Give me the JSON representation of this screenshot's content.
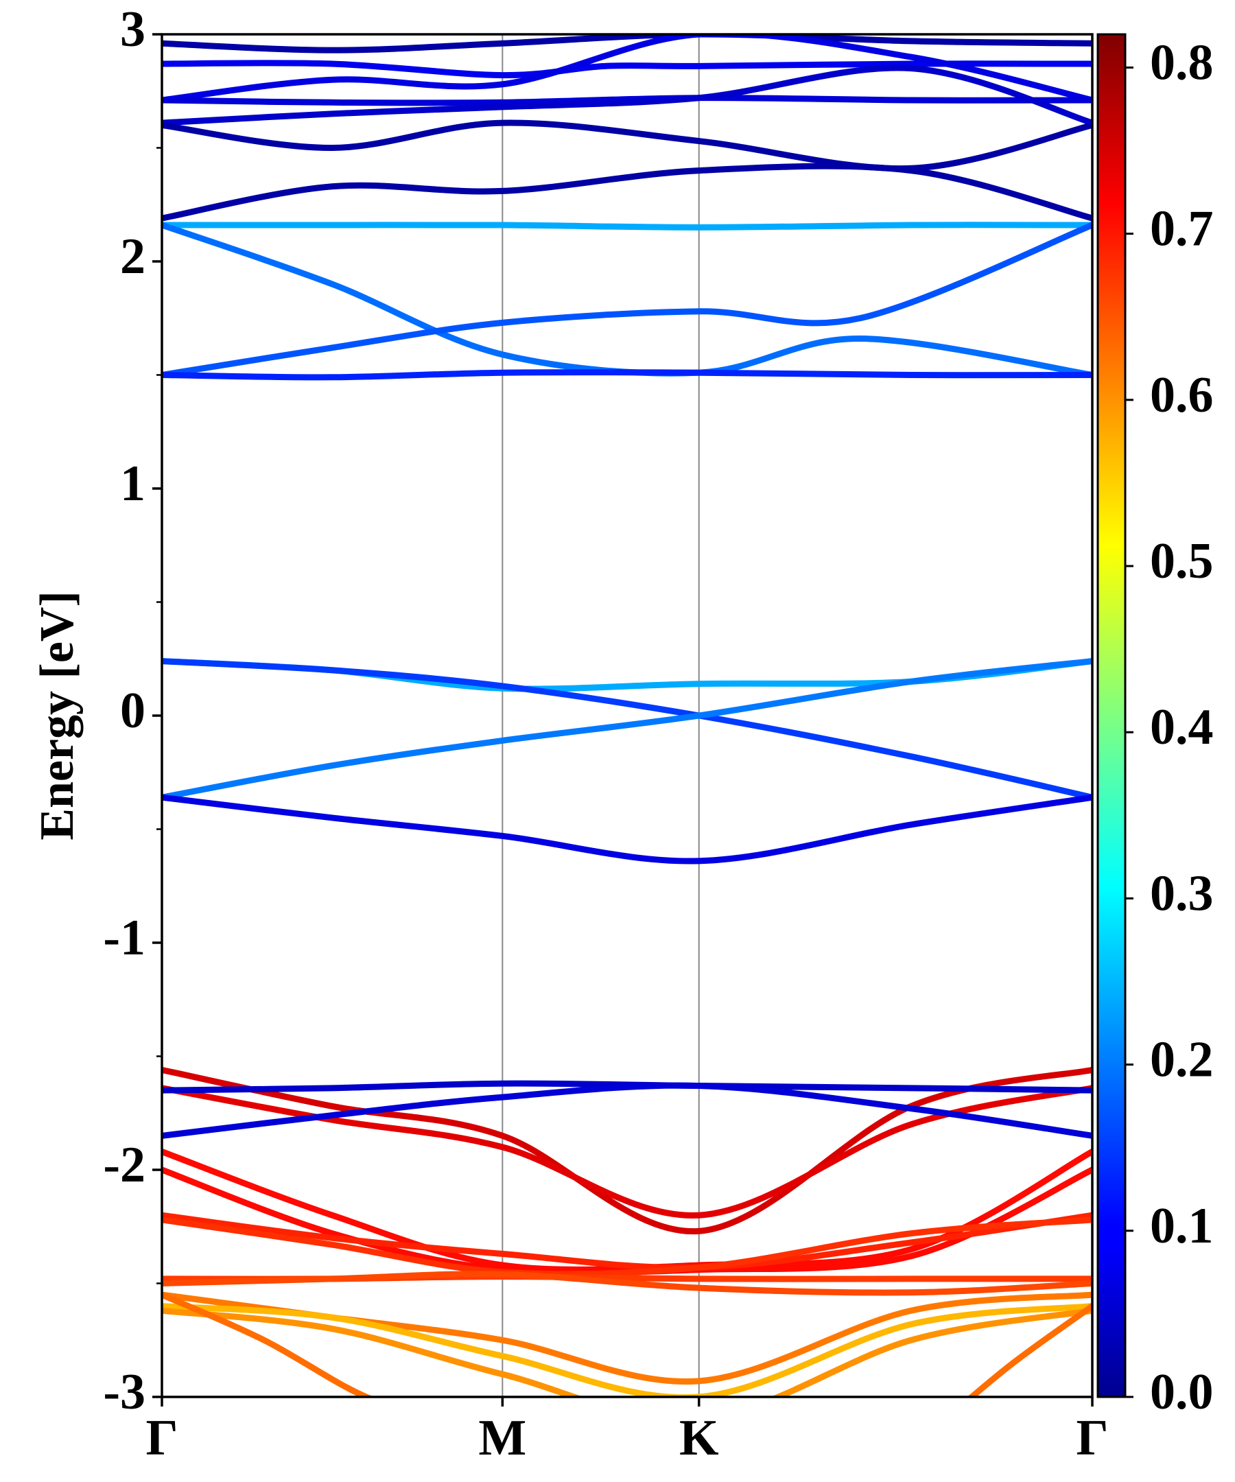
{
  "chart_data": {
    "type": "line",
    "ylabel": "Energy [eV]",
    "ylim": [
      -3,
      3
    ],
    "yticks": [
      -3,
      -2,
      -1,
      0,
      1,
      2,
      3
    ],
    "yminor_ticks": [
      -2.5,
      -1.5,
      -0.5,
      0.5,
      1.5,
      2.5
    ],
    "kpath": [
      {
        "label": "Γ",
        "x": 0
      },
      {
        "label": "M",
        "x": 1.0
      },
      {
        "label": "K",
        "x": 1.577
      },
      {
        "label": "Γ",
        "x": 2.732
      }
    ],
    "colorbar": {
      "min": 0.0,
      "max": 0.82,
      "ticks": [
        "0.0",
        "0.1",
        "0.2",
        "0.3",
        "0.4",
        "0.5",
        "0.6",
        "0.7",
        "0.8"
      ],
      "colormap": "jet"
    },
    "series": [
      {
        "x": [
          0,
          0.5,
          1.0,
          1.577,
          2.2,
          2.732
        ],
        "energy": [
          2.96,
          2.93,
          2.96,
          3.0,
          2.97,
          2.96
        ],
        "weight": 0.03
      },
      {
        "x": [
          0,
          0.5,
          1.0,
          1.3,
          1.577,
          2.2,
          2.732
        ],
        "energy": [
          2.87,
          2.87,
          2.82,
          2.86,
          2.86,
          2.87,
          2.87
        ],
        "weight": 0.09
      },
      {
        "x": [
          0,
          0.5,
          1.0,
          1.577,
          2.2,
          2.732
        ],
        "energy": [
          2.71,
          2.8,
          2.78,
          3.0,
          2.9,
          2.71
        ],
        "weight": 0.08
      },
      {
        "x": [
          0,
          0.5,
          1.0,
          1.577,
          2.2,
          2.732
        ],
        "energy": [
          2.71,
          2.7,
          2.7,
          2.72,
          2.71,
          2.71
        ],
        "weight": 0.07
      },
      {
        "x": [
          0,
          0.5,
          1.0,
          1.577,
          2.2,
          2.732
        ],
        "energy": [
          2.61,
          2.65,
          2.68,
          2.72,
          2.85,
          2.61
        ],
        "weight": 0.06
      },
      {
        "x": [
          0,
          0.5,
          1.0,
          1.577,
          2.2,
          2.732
        ],
        "energy": [
          2.6,
          2.5,
          2.61,
          2.53,
          2.41,
          2.6
        ],
        "weight": 0.03
      },
      {
        "x": [
          0,
          0.5,
          1.0,
          1.577,
          2.2,
          2.732
        ],
        "energy": [
          2.19,
          2.33,
          2.31,
          2.4,
          2.4,
          2.19
        ],
        "weight": 0.03
      },
      {
        "x": [
          0,
          0.5,
          1.0,
          1.577,
          2.2,
          2.732
        ],
        "energy": [
          2.16,
          2.16,
          2.16,
          2.15,
          2.16,
          2.16
        ],
        "weight": 0.24
      },
      {
        "x": [
          0,
          0.5,
          1.0,
          1.577,
          2.05,
          2.732
        ],
        "energy": [
          2.16,
          1.9,
          1.59,
          1.51,
          1.66,
          1.5
        ],
        "weight": 0.19
      },
      {
        "x": [
          0,
          0.5,
          1.0,
          1.577,
          2.05,
          2.732
        ],
        "energy": [
          1.5,
          1.62,
          1.73,
          1.78,
          1.75,
          2.16
        ],
        "weight": 0.17
      },
      {
        "x": [
          0,
          0.5,
          1.0,
          1.577,
          2.2,
          2.732
        ],
        "energy": [
          1.5,
          1.49,
          1.51,
          1.51,
          1.5,
          1.5
        ],
        "weight": 0.13
      },
      {
        "x": [
          0,
          0.5,
          1.0,
          1.577,
          2.2,
          2.732
        ],
        "energy": [
          0.24,
          0.2,
          0.12,
          0.14,
          0.15,
          0.24
        ],
        "weight": 0.24
      },
      {
        "x": [
          0,
          0.5,
          1.0,
          1.577,
          2.2,
          2.732
        ],
        "energy": [
          0.24,
          0.2,
          0.13,
          0.0,
          -0.18,
          -0.36
        ],
        "weight": 0.15
      },
      {
        "x": [
          0,
          0.5,
          1.0,
          1.577,
          2.2,
          2.732
        ],
        "energy": [
          -0.36,
          -0.22,
          -0.11,
          0.0,
          0.15,
          0.24
        ],
        "weight": 0.2
      },
      {
        "x": [
          0,
          0.5,
          1.0,
          1.577,
          2.2,
          2.732
        ],
        "energy": [
          -0.36,
          -0.45,
          -0.53,
          -0.64,
          -0.48,
          -0.36
        ],
        "weight": 0.08
      },
      {
        "x": [
          0,
          0.5,
          1.0,
          1.577,
          2.2,
          2.732
        ],
        "energy": [
          -1.56,
          -1.72,
          -1.85,
          -2.27,
          -1.72,
          -1.56
        ],
        "weight": 0.75
      },
      {
        "x": [
          0,
          0.5,
          1.0,
          1.577,
          2.2,
          2.732
        ],
        "energy": [
          -1.64,
          -1.78,
          -1.9,
          -2.2,
          -1.8,
          -1.64
        ],
        "weight": 0.74
      },
      {
        "x": [
          0,
          0.5,
          1.0,
          1.577,
          2.2,
          2.732
        ],
        "energy": [
          -1.65,
          -1.64,
          -1.62,
          -1.63,
          -1.64,
          -1.65
        ],
        "weight": 0.06
      },
      {
        "x": [
          0,
          0.5,
          1.0,
          1.577,
          2.2,
          2.732
        ],
        "energy": [
          -1.85,
          -1.76,
          -1.68,
          -1.63,
          -1.73,
          -1.85
        ],
        "weight": 0.07
      },
      {
        "x": [
          0,
          0.5,
          1.0,
          1.577,
          2.2,
          2.732
        ],
        "energy": [
          -1.92,
          -2.2,
          -2.42,
          -2.42,
          -2.35,
          -1.92
        ],
        "weight": 0.71
      },
      {
        "x": [
          0,
          0.5,
          1.0,
          1.577,
          2.2,
          2.732
        ],
        "energy": [
          -2.0,
          -2.28,
          -2.44,
          -2.44,
          -2.38,
          -2.0
        ],
        "weight": 0.71
      },
      {
        "x": [
          0,
          0.5,
          1.0,
          1.577,
          2.2,
          2.732
        ],
        "energy": [
          -2.2,
          -2.3,
          -2.37,
          -2.43,
          -2.32,
          -2.2
        ],
        "weight": 0.69
      },
      {
        "x": [
          0,
          0.5,
          1.0,
          1.577,
          2.2,
          2.732
        ],
        "energy": [
          -2.22,
          -2.33,
          -2.45,
          -2.43,
          -2.28,
          -2.22
        ],
        "weight": 0.68
      },
      {
        "x": [
          0,
          0.5,
          1.0,
          1.577,
          2.2,
          2.732
        ],
        "energy": [
          -2.48,
          -2.48,
          -2.47,
          -2.48,
          -2.48,
          -2.48
        ],
        "weight": 0.67
      },
      {
        "x": [
          0,
          0.5,
          1.0,
          1.577,
          2.2,
          2.732
        ],
        "energy": [
          -2.5,
          -2.48,
          -2.46,
          -2.52,
          -2.54,
          -2.5
        ],
        "weight": 0.66
      },
      {
        "x": [
          0,
          0.5,
          1.0,
          1.577,
          2.2,
          2.732
        ],
        "energy": [
          -2.55,
          -2.65,
          -2.75,
          -2.93,
          -2.62,
          -2.55
        ],
        "weight": 0.62
      },
      {
        "x": [
          0,
          0.5,
          1.0,
          1.577,
          2.2,
          2.732
        ],
        "energy": [
          -2.6,
          -2.65,
          -2.82,
          -3.0,
          -2.68,
          -2.6
        ],
        "weight": 0.57
      },
      {
        "x": [
          0,
          0.5,
          1.0,
          1.577,
          2.2,
          2.732
        ],
        "energy": [
          -2.62,
          -2.7,
          -2.9,
          -3.1,
          -2.75,
          -2.62
        ],
        "weight": 0.6
      },
      {
        "x": [
          0,
          0.3,
          0.6,
          0.85
        ],
        "energy": [
          -2.55,
          -2.75,
          -3.0,
          -3.1
        ],
        "weight": 0.63
      },
      {
        "x": [
          2.3,
          2.5,
          2.732
        ],
        "energy": [
          -3.1,
          -2.85,
          -2.6
        ],
        "weight": 0.63
      }
    ]
  }
}
